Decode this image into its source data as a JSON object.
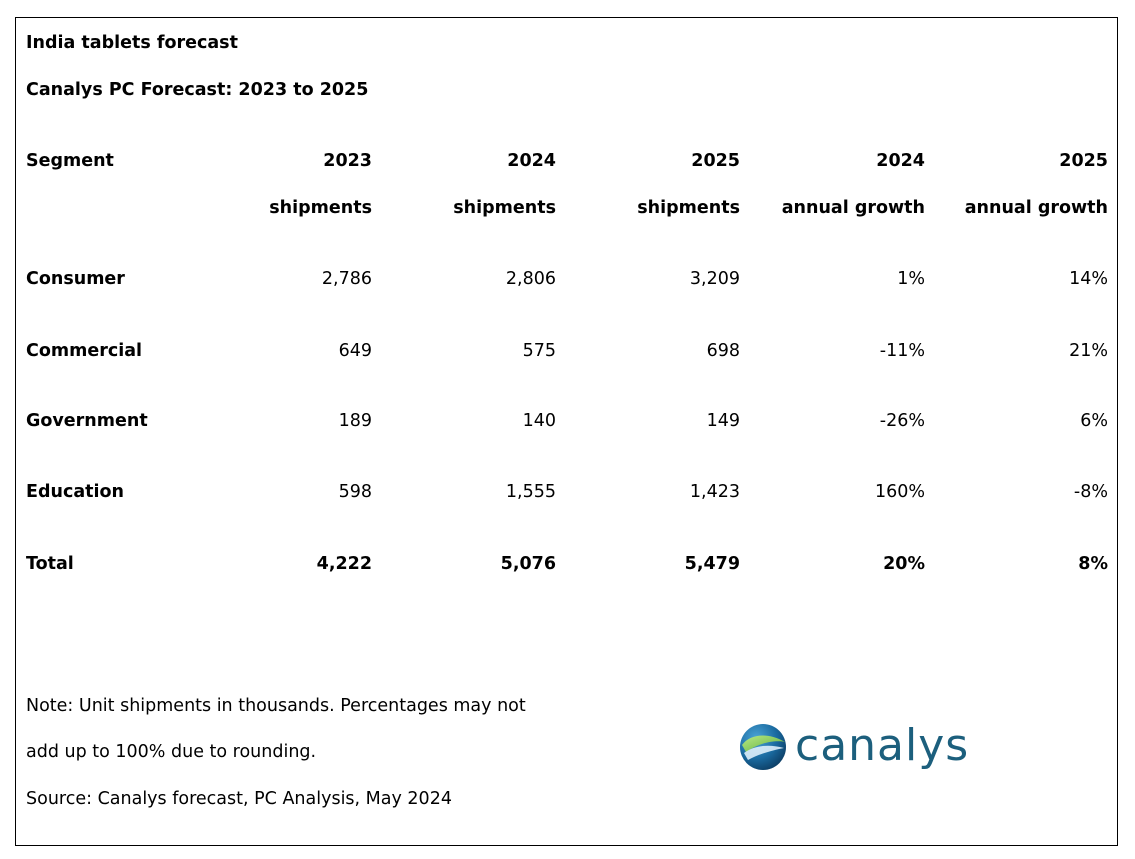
{
  "title": "India tablets forecast",
  "subtitle": "Canalys PC Forecast: 2023 to 2025",
  "table": {
    "headers": [
      {
        "line1": "Segment",
        "line2": ""
      },
      {
        "line1": "2023",
        "line2": "shipments"
      },
      {
        "line1": "2024",
        "line2": "shipments"
      },
      {
        "line1": "2025",
        "line2": "shipments"
      },
      {
        "line1": "2024",
        "line2": "annual growth"
      },
      {
        "line1": "2025",
        "line2": "annual growth"
      }
    ],
    "rows": [
      {
        "segment": "Consumer",
        "s2023": "2,786",
        "s2024": "2,806",
        "s2025": "3,209",
        "g2024": "1%",
        "g2025": "14%"
      },
      {
        "segment": "Commercial",
        "s2023": "649",
        "s2024": "575",
        "s2025": "698",
        "g2024": "-11%",
        "g2025": "21%"
      },
      {
        "segment": "Government",
        "s2023": "189",
        "s2024": "140",
        "s2025": "149",
        "g2024": "-26%",
        "g2025": "6%"
      },
      {
        "segment": "Education",
        "s2023": "598",
        "s2024": "1,555",
        "s2025": "1,423",
        "g2024": "160%",
        "g2025": "-8%"
      },
      {
        "segment": "Total",
        "s2023": "4,222",
        "s2024": "5,076",
        "s2025": "5,479",
        "g2024": "20%",
        "g2025": "8%"
      }
    ]
  },
  "notes": {
    "line1": "Note: Unit shipments in thousands. Percentages may not",
    "line2": "add up to 100% due to rounding.",
    "source": "Source: Canalys forecast, PC Analysis, May 2024"
  },
  "logo": {
    "wordmark": "canalys",
    "icon": "canalys-globe-logo-icon",
    "color": "#1c5f7d"
  }
}
